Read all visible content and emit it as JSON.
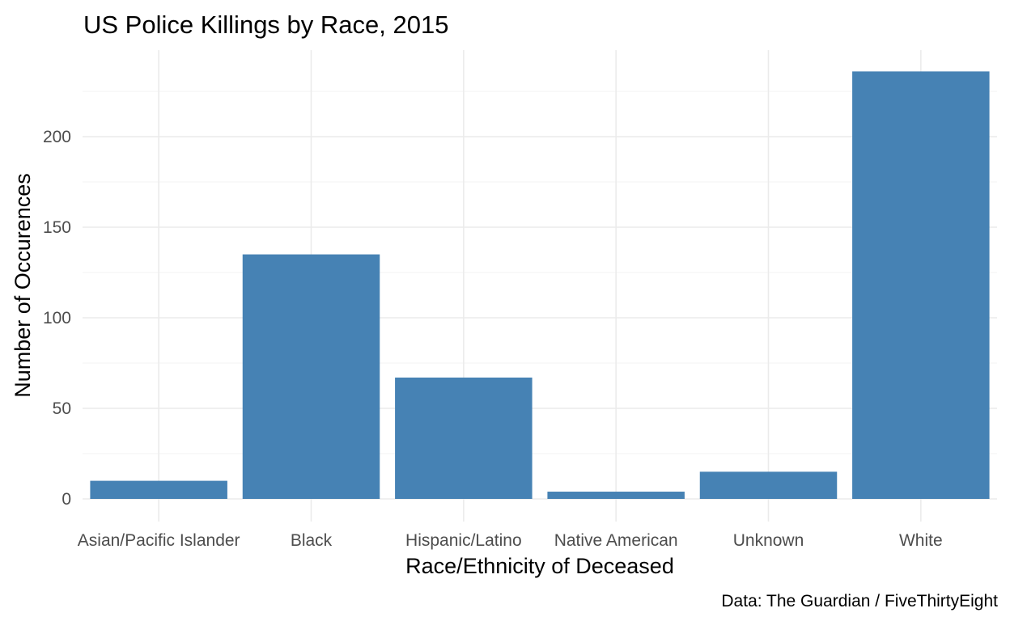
{
  "chart_data": {
    "type": "bar",
    "title": "US Police Killings by Race, 2015",
    "xlabel": "Race/Ethnicity of Deceased",
    "ylabel": "Number of Occurences",
    "caption": "Data: The Guardian / FiveThirtyEight",
    "categories": [
      "Asian/Pacific Islander",
      "Black",
      "Hispanic/Latino",
      "Native American",
      "Unknown",
      "White"
    ],
    "values": [
      10,
      135,
      67,
      4,
      15,
      236
    ],
    "ylim": [
      0,
      248
    ],
    "yticks": [
      0,
      50,
      100,
      150,
      200
    ],
    "ytick_labels": [
      "0",
      "50",
      "100",
      "150",
      "200"
    ],
    "bar_color": "#4682b4",
    "grid": true,
    "legend": "none"
  }
}
